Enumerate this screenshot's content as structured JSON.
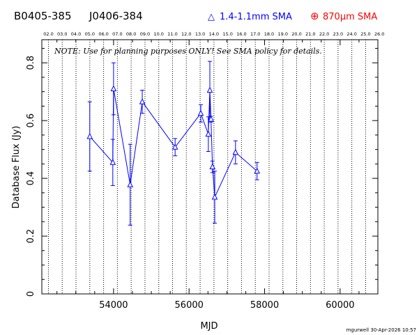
{
  "header": {
    "source_name": "B0405-385",
    "alt_name": "J0406-384",
    "legend_blue": "1.4-1.1mm SMA",
    "legend_red_pre": "870",
    "legend_red_mu": "μ",
    "legend_red_post": "m SMA",
    "legend_blue_symbol": "△",
    "legend_red_symbol": "⊕"
  },
  "note": "NOTE: Use for planning purposes ONLY!  See SMA policy for details.",
  "footer": "mgurwell 30-Apr-2026 10:57",
  "colors": {
    "blue": "#0000ff",
    "red": "#ff0000",
    "black": "#000000"
  },
  "chart_data": {
    "type": "scatter",
    "xlabel": "MJD",
    "ylabel": "Database Flux (Jy)",
    "xlim": [
      52100,
      61000
    ],
    "ylim": [
      0,
      0.88
    ],
    "x_ticks": [
      54000,
      56000,
      58000,
      60000
    ],
    "y_ticks": [
      0,
      0.2,
      0.4,
      0.6,
      0.8
    ],
    "y_tick_labels": [
      "0",
      "0.2",
      "0.4",
      "0.6",
      "0.8"
    ],
    "grid": false,
    "top_axis": {
      "labels": [
        "02.0",
        "03.0",
        "04.0",
        "05.0",
        "06.0",
        "07.0",
        "08.0",
        "09.0",
        "10.0",
        "11.0",
        "12.0",
        "13.0",
        "14.0",
        "15.0",
        "16.0",
        "17.0",
        "18.0",
        "19.0",
        "20.0",
        "21.0",
        "22.0",
        "23.0",
        "24.0",
        "25.0",
        "26.0"
      ],
      "years": [
        2002,
        2003,
        2004,
        2005,
        2006,
        2007,
        2008,
        2009,
        2010,
        2011,
        2012,
        2013,
        2014,
        2015,
        2016,
        2017,
        2018,
        2019,
        2020,
        2021,
        2022,
        2023,
        2024,
        2025,
        2026
      ]
    },
    "series": [
      {
        "name": "1.4-1.1mm SMA",
        "color": "#0000ff",
        "marker": "triangle",
        "points": [
          {
            "x": 53370,
            "y": 0.545,
            "err": 0.12
          },
          {
            "x": 53980,
            "y": 0.455,
            "err": 0.08
          },
          {
            "x": 54000,
            "y": 0.71,
            "err": 0.09
          },
          {
            "x": 54440,
            "y": 0.378,
            "err": 0.14
          },
          {
            "x": 54760,
            "y": 0.665,
            "err": 0.04
          },
          {
            "x": 55630,
            "y": 0.508,
            "err": 0.03
          },
          {
            "x": 56310,
            "y": 0.625,
            "err": 0.03
          },
          {
            "x": 56510,
            "y": 0.553,
            "err": 0.06
          },
          {
            "x": 56550,
            "y": 0.705,
            "err": 0.1
          },
          {
            "x": 56580,
            "y": 0.605,
            "err": 0.01
          },
          {
            "x": 56620,
            "y": 0.44,
            "err": 0.02
          },
          {
            "x": 56680,
            "y": 0.335,
            "err": 0.09
          },
          {
            "x": 57230,
            "y": 0.49,
            "err": 0.04
          },
          {
            "x": 57800,
            "y": 0.425,
            "err": 0.03
          }
        ]
      }
    ]
  }
}
